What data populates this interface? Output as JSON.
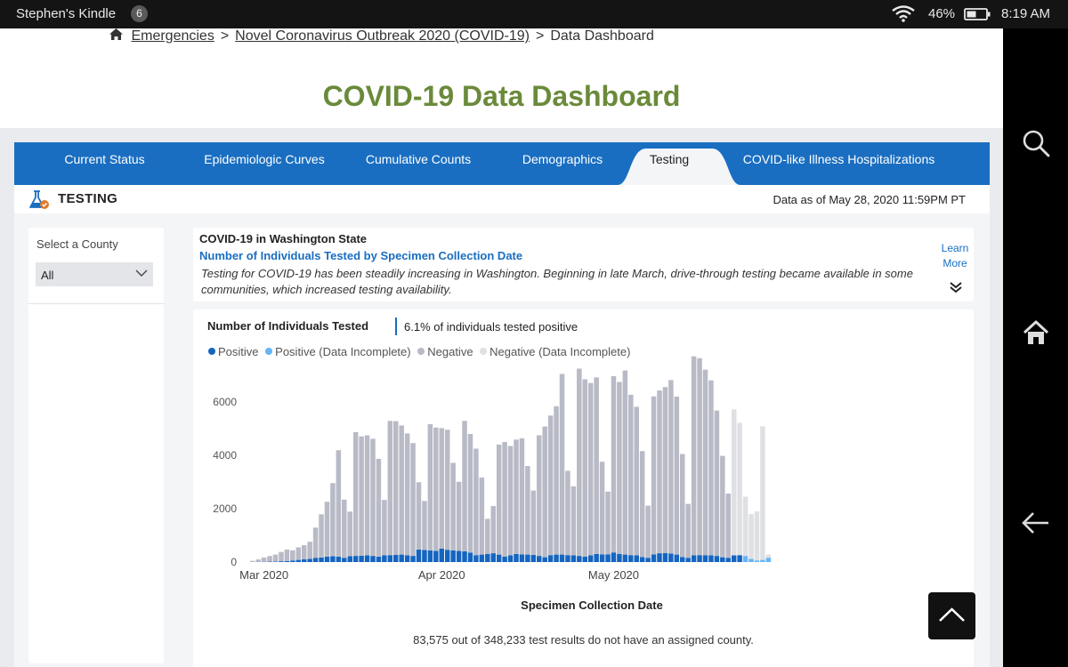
{
  "status_bar": {
    "device_name": "Stephen's Kindle",
    "notification_count": "6",
    "battery": "46%",
    "time": "8:19 AM"
  },
  "breadcrumb": {
    "items": [
      "Emergencies",
      "Novel Coronavirus Outbreak 2020 (COVID-19)",
      "Data Dashboard"
    ],
    "separator": ">"
  },
  "page_title": "COVID-19 Data Dashboard",
  "tabs": [
    {
      "label": "Current Status"
    },
    {
      "label": "Epidemiologic Curves"
    },
    {
      "label": "Cumulative Counts"
    },
    {
      "label": "Demographics"
    },
    {
      "label": "Testing",
      "active": true
    },
    {
      "label": "COVID-like Illness Hospitalizations"
    }
  ],
  "section": {
    "title": "TESTING",
    "data_as_of": "Data as of May 28, 2020 11:59PM PT"
  },
  "county_filter": {
    "label": "Select a County",
    "value": "All"
  },
  "info": {
    "state": "COVID-19 in Washington State",
    "subtitle": "Number of Individuals Tested by Specimen Collection Date",
    "description": "Testing for COVID-19 has been steadily increasing in Washington. Beginning in late March, drive-through testing became available in some communities, which increased testing availability.",
    "learn_more": "Learn More"
  },
  "chart_header": {
    "title": "Number of Individuals Tested",
    "positive_rate": "6.1% of individuals tested positive"
  },
  "legend": [
    {
      "label": "Positive",
      "color": "#1565c0"
    },
    {
      "label": "Positive (Data Incomplete)",
      "color": "#64b5f6"
    },
    {
      "label": "Negative",
      "color": "#b8bac6"
    },
    {
      "label": "Negative (Data Incomplete)",
      "color": "#dfe0e4"
    }
  ],
  "chart_data": {
    "type": "bar",
    "stacked": true,
    "xlabel": "Specimen Collection Date",
    "ylabel": "",
    "ylim": [
      0,
      8000
    ],
    "yticks": [
      0,
      2000,
      4000,
      6000
    ],
    "xticks": [
      {
        "label": "Mar 2020",
        "date": "2020-03-01"
      },
      {
        "label": "Apr 2020",
        "date": "2020-04-01"
      },
      {
        "label": "May 2020",
        "date": "2020-05-01"
      }
    ],
    "categories": [
      "2020-02-28",
      "2020-02-29",
      "2020-03-01",
      "2020-03-02",
      "2020-03-03",
      "2020-03-04",
      "2020-03-05",
      "2020-03-06",
      "2020-03-07",
      "2020-03-08",
      "2020-03-09",
      "2020-03-10",
      "2020-03-11",
      "2020-03-12",
      "2020-03-13",
      "2020-03-14",
      "2020-03-15",
      "2020-03-16",
      "2020-03-17",
      "2020-03-18",
      "2020-03-19",
      "2020-03-20",
      "2020-03-21",
      "2020-03-22",
      "2020-03-23",
      "2020-03-24",
      "2020-03-25",
      "2020-03-26",
      "2020-03-27",
      "2020-03-28",
      "2020-03-29",
      "2020-03-30",
      "2020-03-31",
      "2020-04-01",
      "2020-04-02",
      "2020-04-03",
      "2020-04-04",
      "2020-04-05",
      "2020-04-06",
      "2020-04-07",
      "2020-04-08",
      "2020-04-09",
      "2020-04-10",
      "2020-04-11",
      "2020-04-12",
      "2020-04-13",
      "2020-04-14",
      "2020-04-15",
      "2020-04-16",
      "2020-04-17",
      "2020-04-18",
      "2020-04-19",
      "2020-04-20",
      "2020-04-21",
      "2020-04-22",
      "2020-04-23",
      "2020-04-24",
      "2020-04-25",
      "2020-04-26",
      "2020-04-27",
      "2020-04-28",
      "2020-04-29",
      "2020-04-30",
      "2020-05-01",
      "2020-05-02",
      "2020-05-03",
      "2020-05-04",
      "2020-05-05",
      "2020-05-06",
      "2020-05-07",
      "2020-05-08",
      "2020-05-09",
      "2020-05-10",
      "2020-05-11",
      "2020-05-12",
      "2020-05-13",
      "2020-05-14",
      "2020-05-15",
      "2020-05-16",
      "2020-05-17",
      "2020-05-18",
      "2020-05-19",
      "2020-05-20",
      "2020-05-21",
      "2020-05-22",
      "2020-05-23",
      "2020-05-24",
      "2020-05-25",
      "2020-05-26",
      "2020-05-27",
      "2020-05-28"
    ],
    "series": [
      {
        "name": "Positive",
        "values": [
          5,
          8,
          10,
          15,
          20,
          30,
          40,
          60,
          80,
          100,
          120,
          160,
          170,
          200,
          220,
          200,
          160,
          220,
          230,
          240,
          250,
          230,
          200,
          250,
          260,
          270,
          280,
          250,
          230,
          470,
          450,
          440,
          420,
          500,
          460,
          440,
          420,
          400,
          350,
          260,
          280,
          300,
          330,
          280,
          200,
          250,
          300,
          290,
          280,
          270,
          230,
          180,
          260,
          280,
          280,
          260,
          250,
          230,
          200,
          250,
          300,
          290,
          290,
          360,
          300,
          280,
          260,
          250,
          190,
          160,
          290,
          330,
          340,
          320,
          280,
          190,
          160,
          250,
          260,
          260,
          250,
          230,
          180,
          160,
          250,
          260,
          0,
          0,
          0,
          0,
          0
        ],
        "incomplete_values": [
          0,
          0,
          0,
          0,
          0,
          0,
          0,
          0,
          0,
          0,
          0,
          0,
          0,
          0,
          0,
          0,
          0,
          0,
          0,
          0,
          0,
          0,
          0,
          0,
          0,
          0,
          0,
          0,
          0,
          0,
          0,
          0,
          0,
          0,
          0,
          0,
          0,
          0,
          0,
          0,
          0,
          0,
          0,
          0,
          0,
          0,
          0,
          0,
          0,
          0,
          0,
          0,
          0,
          0,
          0,
          0,
          0,
          0,
          0,
          0,
          0,
          0,
          0,
          0,
          0,
          0,
          0,
          0,
          0,
          0,
          0,
          0,
          0,
          0,
          0,
          0,
          0,
          0,
          0,
          0,
          0,
          0,
          0,
          0,
          0,
          0,
          230,
          120,
          60,
          80,
          160
        ]
      },
      {
        "name": "Negative",
        "values": [
          40,
          90,
          160,
          210,
          260,
          350,
          430,
          380,
          470,
          530,
          640,
          1130,
          1620,
          2060,
          2740,
          3990,
          2180,
          1670,
          4640,
          4470,
          4500,
          4390,
          3670,
          2080,
          5030,
          5010,
          4840,
          4570,
          4230,
          2520,
          1840,
          4730,
          4620,
          4520,
          4500,
          3280,
          2590,
          4890,
          4450,
          3990,
          2890,
          1320,
          1770,
          4120,
          4300,
          4100,
          4290,
          4350,
          3320,
          2410,
          4520,
          4900,
          5230,
          5560,
          6770,
          3160,
          2590,
          7020,
          6650,
          6460,
          6620,
          3470,
          2350,
          6610,
          6450,
          6900,
          6010,
          5570,
          3970,
          1950,
          5920,
          6100,
          6220,
          6500,
          5920,
          3860,
          2020,
          7460,
          7380,
          6950,
          6560,
          5450,
          3800,
          2410,
          0,
          0,
          0,
          0,
          0,
          0,
          0
        ],
        "incomplete_values": [
          0,
          0,
          0,
          0,
          0,
          0,
          0,
          0,
          0,
          0,
          0,
          0,
          0,
          0,
          0,
          0,
          0,
          0,
          0,
          0,
          0,
          0,
          0,
          0,
          0,
          0,
          0,
          0,
          0,
          0,
          0,
          0,
          0,
          0,
          0,
          0,
          0,
          0,
          0,
          0,
          0,
          0,
          0,
          0,
          0,
          0,
          0,
          0,
          0,
          0,
          0,
          0,
          0,
          0,
          0,
          0,
          0,
          0,
          0,
          0,
          0,
          0,
          0,
          0,
          0,
          0,
          0,
          0,
          0,
          0,
          0,
          0,
          0,
          0,
          0,
          0,
          0,
          0,
          0,
          0,
          0,
          0,
          0,
          0,
          5470,
          4960,
          2220,
          1680,
          1840,
          5010,
          120
        ]
      }
    ]
  },
  "chart_note": "83,575 out of 348,233 test results do not have an assigned county."
}
